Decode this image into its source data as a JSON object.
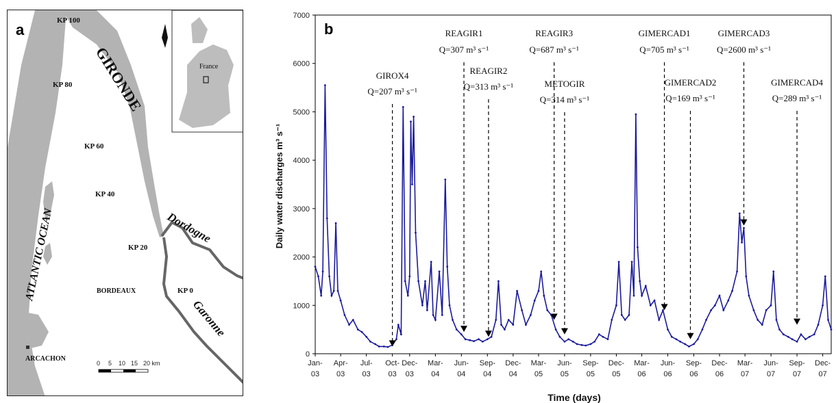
{
  "map": {
    "panel_letter": "a",
    "ocean_label": "ATLANTIC OCEAN",
    "estuary_label": "GIRONDE",
    "rivers": [
      "Dordogne",
      "Garonne"
    ],
    "cities": [
      "BORDEAUX",
      "ARCACHON"
    ],
    "kilometric_points": [
      "KP 100",
      "KP 80",
      "KP 60",
      "KP 40",
      "KP 20",
      "KP 0"
    ],
    "inset_label": "France",
    "scale_ticks": [
      "0",
      "5",
      "10",
      "15",
      "20 km"
    ]
  },
  "chart_data": {
    "type": "line",
    "panel_letter": "b",
    "xlabel": "Time (days)",
    "ylabel": "Daily water discharges m³ s⁻¹",
    "ylim": [
      0,
      7000
    ],
    "yticks": [
      0,
      1000,
      2000,
      3000,
      4000,
      5000,
      6000,
      7000
    ],
    "xlim": [
      "2003-01-01",
      "2007-12-31"
    ],
    "xticks": [
      {
        "date": "2003-01-01",
        "top": "Jan-",
        "bottom": "03"
      },
      {
        "date": "2003-04-01",
        "top": "Apr-",
        "bottom": "03"
      },
      {
        "date": "2003-07-01",
        "top": "Jul-",
        "bottom": "03"
      },
      {
        "date": "2003-10-01",
        "top": "Oct-",
        "bottom": "03"
      },
      {
        "date": "2003-12-01",
        "top": "Dec-",
        "bottom": "03"
      },
      {
        "date": "2004-03-01",
        "top": "Mar-",
        "bottom": "04"
      },
      {
        "date": "2004-06-01",
        "top": "Jun-",
        "bottom": "04"
      },
      {
        "date": "2004-09-01",
        "top": "Sep-",
        "bottom": "04"
      },
      {
        "date": "2004-12-01",
        "top": "Dec-",
        "bottom": "04"
      },
      {
        "date": "2005-03-01",
        "top": "Mar-",
        "bottom": "05"
      },
      {
        "date": "2005-06-01",
        "top": "Jun-",
        "bottom": "05"
      },
      {
        "date": "2005-09-01",
        "top": "Sep-",
        "bottom": "05"
      },
      {
        "date": "2005-12-01",
        "top": "Dec-",
        "bottom": "05"
      },
      {
        "date": "2006-03-01",
        "top": "Mar-",
        "bottom": "06"
      },
      {
        "date": "2006-06-01",
        "top": "Jun-",
        "bottom": "06"
      },
      {
        "date": "2006-09-01",
        "top": "Sep-",
        "bottom": "06"
      },
      {
        "date": "2006-12-01",
        "top": "Dec-",
        "bottom": "06"
      },
      {
        "date": "2007-03-01",
        "top": "Mar-",
        "bottom": "07"
      },
      {
        "date": "2007-06-01",
        "top": "Jun-",
        "bottom": "07"
      },
      {
        "date": "2007-09-01",
        "top": "Sep-",
        "bottom": "07"
      },
      {
        "date": "2007-12-01",
        "top": "Dec-",
        "bottom": "07"
      }
    ],
    "series": [
      {
        "color": "#1a1a9c",
        "points": [
          [
            "2003-01-01",
            1800
          ],
          [
            "2003-01-12",
            1600
          ],
          [
            "2003-01-22",
            1200
          ],
          [
            "2003-01-28",
            1700
          ],
          [
            "2003-02-05",
            5550
          ],
          [
            "2003-02-12",
            2800
          ],
          [
            "2003-02-20",
            1600
          ],
          [
            "2003-02-28",
            1200
          ],
          [
            "2003-03-08",
            1300
          ],
          [
            "2003-03-15",
            2700
          ],
          [
            "2003-03-22",
            1300
          ],
          [
            "2003-04-01",
            1100
          ],
          [
            "2003-04-15",
            800
          ],
          [
            "2003-05-01",
            600
          ],
          [
            "2003-05-15",
            700
          ],
          [
            "2003-06-01",
            500
          ],
          [
            "2003-06-15",
            450
          ],
          [
            "2003-07-01",
            350
          ],
          [
            "2003-07-15",
            250
          ],
          [
            "2003-08-01",
            200
          ],
          [
            "2003-08-15",
            150
          ],
          [
            "2003-09-01",
            150
          ],
          [
            "2003-09-15",
            140
          ],
          [
            "2003-10-01",
            180
          ],
          [
            "2003-10-15",
            300
          ],
          [
            "2003-10-22",
            600
          ],
          [
            "2003-11-01",
            400
          ],
          [
            "2003-11-08",
            5100
          ],
          [
            "2003-11-15",
            1500
          ],
          [
            "2003-11-25",
            1200
          ],
          [
            "2003-12-01",
            1600
          ],
          [
            "2003-12-05",
            4800
          ],
          [
            "2003-12-10",
            3500
          ],
          [
            "2003-12-15",
            4900
          ],
          [
            "2003-12-22",
            2500
          ],
          [
            "2004-01-01",
            1500
          ],
          [
            "2004-01-15",
            1000
          ],
          [
            "2004-01-25",
            1500
          ],
          [
            "2004-02-01",
            900
          ],
          [
            "2004-02-15",
            1900
          ],
          [
            "2004-02-22",
            800
          ],
          [
            "2004-03-01",
            700
          ],
          [
            "2004-03-15",
            1700
          ],
          [
            "2004-03-25",
            800
          ],
          [
            "2004-04-05",
            3600
          ],
          [
            "2004-04-12",
            1800
          ],
          [
            "2004-04-20",
            1000
          ],
          [
            "2004-05-01",
            700
          ],
          [
            "2004-05-15",
            500
          ],
          [
            "2004-06-01",
            400
          ],
          [
            "2004-06-15",
            300
          ],
          [
            "2004-07-01",
            280
          ],
          [
            "2004-07-15",
            260
          ],
          [
            "2004-08-01",
            300
          ],
          [
            "2004-08-15",
            250
          ],
          [
            "2004-09-01",
            300
          ],
          [
            "2004-09-15",
            350
          ],
          [
            "2004-10-01",
            700
          ],
          [
            "2004-10-10",
            1500
          ],
          [
            "2004-10-20",
            600
          ],
          [
            "2004-11-01",
            500
          ],
          [
            "2004-11-15",
            700
          ],
          [
            "2004-12-01",
            600
          ],
          [
            "2004-12-15",
            1300
          ],
          [
            "2005-01-01",
            900
          ],
          [
            "2005-01-15",
            600
          ],
          [
            "2005-02-01",
            800
          ],
          [
            "2005-02-15",
            1100
          ],
          [
            "2005-03-01",
            1300
          ],
          [
            "2005-03-10",
            1700
          ],
          [
            "2005-03-20",
            1200
          ],
          [
            "2005-04-01",
            900
          ],
          [
            "2005-04-15",
            800
          ],
          [
            "2005-05-01",
            500
          ],
          [
            "2005-05-15",
            350
          ],
          [
            "2005-06-01",
            250
          ],
          [
            "2005-06-15",
            300
          ],
          [
            "2005-07-01",
            250
          ],
          [
            "2005-07-15",
            200
          ],
          [
            "2005-08-01",
            180
          ],
          [
            "2005-08-15",
            170
          ],
          [
            "2005-09-01",
            200
          ],
          [
            "2005-09-15",
            250
          ],
          [
            "2005-10-01",
            400
          ],
          [
            "2005-10-15",
            350
          ],
          [
            "2005-11-01",
            300
          ],
          [
            "2005-11-15",
            700
          ],
          [
            "2005-12-01",
            1000
          ],
          [
            "2005-12-10",
            1900
          ],
          [
            "2005-12-20",
            800
          ],
          [
            "2006-01-01",
            700
          ],
          [
            "2006-01-15",
            800
          ],
          [
            "2006-01-25",
            1900
          ],
          [
            "2006-02-01",
            1200
          ],
          [
            "2006-02-08",
            4950
          ],
          [
            "2006-02-14",
            2200
          ],
          [
            "2006-02-22",
            1500
          ],
          [
            "2006-03-01",
            1200
          ],
          [
            "2006-03-15",
            1400
          ],
          [
            "2006-04-01",
            1000
          ],
          [
            "2006-04-15",
            1100
          ],
          [
            "2006-05-01",
            700
          ],
          [
            "2006-05-15",
            900
          ],
          [
            "2006-06-01",
            500
          ],
          [
            "2006-06-15",
            350
          ],
          [
            "2006-07-01",
            300
          ],
          [
            "2006-07-15",
            250
          ],
          [
            "2006-08-01",
            200
          ],
          [
            "2006-08-15",
            150
          ],
          [
            "2006-09-01",
            200
          ],
          [
            "2006-09-15",
            300
          ],
          [
            "2006-10-01",
            500
          ],
          [
            "2006-10-15",
            700
          ],
          [
            "2006-11-01",
            900
          ],
          [
            "2006-11-15",
            1000
          ],
          [
            "2006-12-01",
            1200
          ],
          [
            "2006-12-15",
            900
          ],
          [
            "2007-01-01",
            1100
          ],
          [
            "2007-01-15",
            1300
          ],
          [
            "2007-02-01",
            1700
          ],
          [
            "2007-02-10",
            2900
          ],
          [
            "2007-02-18",
            2300
          ],
          [
            "2007-02-25",
            2600
          ],
          [
            "2007-03-05",
            1600
          ],
          [
            "2007-03-15",
            1200
          ],
          [
            "2007-04-01",
            900
          ],
          [
            "2007-04-15",
            700
          ],
          [
            "2007-05-01",
            600
          ],
          [
            "2007-05-15",
            900
          ],
          [
            "2007-06-01",
            1000
          ],
          [
            "2007-06-10",
            1700
          ],
          [
            "2007-06-20",
            700
          ],
          [
            "2007-07-01",
            500
          ],
          [
            "2007-07-15",
            400
          ],
          [
            "2007-08-01",
            350
          ],
          [
            "2007-08-15",
            300
          ],
          [
            "2007-09-01",
            250
          ],
          [
            "2007-09-15",
            400
          ],
          [
            "2007-10-01",
            300
          ],
          [
            "2007-10-15",
            350
          ],
          [
            "2007-11-01",
            400
          ],
          [
            "2007-11-15",
            600
          ],
          [
            "2007-12-01",
            1000
          ],
          [
            "2007-12-10",
            1600
          ],
          [
            "2007-12-20",
            700
          ],
          [
            "2007-12-31",
            500
          ]
        ]
      }
    ],
    "campaigns": [
      {
        "name": "GIROX4",
        "q": "Q=207 m³ s⁻¹",
        "date": "2003-10-01",
        "value": 150
      },
      {
        "name": "REAGIR1",
        "q": "Q=307 m³ s⁻¹",
        "date": "2004-06-10",
        "value": 450
      },
      {
        "name": "REAGIR2",
        "q": "Q=313 m³ s⁻¹",
        "date": "2004-09-05",
        "value": 350
      },
      {
        "name": "REAGIR3",
        "q": "Q=687 m³ s⁻¹",
        "date": "2005-04-25",
        "value": 700
      },
      {
        "name": "METOGIR",
        "q": "Q=314 m³ s⁻¹",
        "date": "2005-06-01",
        "value": 400
      },
      {
        "name": "GIMERCAD1",
        "q": "Q=705 m³ s⁻¹",
        "date": "2006-05-20",
        "value": 900
      },
      {
        "name": "GIMERCAD2",
        "q": "Q=169 m³ s⁻¹",
        "date": "2006-08-20",
        "value": 300
      },
      {
        "name": "GIMERCAD3",
        "q": "Q=2600 m³ s⁻¹",
        "date": "2007-02-25",
        "value": 2650
      },
      {
        "name": "GIMERCAD4",
        "q": "Q=289 m³ s⁻¹",
        "date": "2007-09-01",
        "value": 600
      }
    ]
  }
}
